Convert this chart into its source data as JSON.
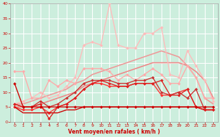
{
  "bg_color": "#cceedd",
  "grid_color": "#ffffff",
  "xlabel": "Vent moyen/en rafales ( km/h )",
  "xlabel_color": "#cc0000",
  "tick_color": "#cc0000",
  "xlim": [
    -0.5,
    23.5
  ],
  "ylim": [
    0,
    40
  ],
  "yticks": [
    0,
    5,
    10,
    15,
    20,
    25,
    30,
    35,
    40
  ],
  "xticks": [
    0,
    1,
    2,
    3,
    4,
    5,
    6,
    7,
    8,
    9,
    10,
    11,
    12,
    13,
    14,
    15,
    16,
    17,
    18,
    19,
    20,
    21,
    22,
    23
  ],
  "lines": [
    {
      "x": [
        0,
        1,
        2,
        3,
        4,
        5,
        6,
        7,
        8,
        9,
        10,
        11,
        12,
        13,
        14,
        15,
        16,
        17,
        18,
        19,
        20,
        21,
        22,
        23
      ],
      "y": [
        5,
        3,
        3,
        3,
        3,
        3,
        4,
        4,
        5,
        5,
        5,
        5,
        5,
        5,
        5,
        5,
        5,
        5,
        5,
        5,
        5,
        5,
        4,
        4
      ],
      "color": "#cc0000",
      "lw": 1.0,
      "marker": null,
      "ms": 0,
      "zorder": 6
    },
    {
      "x": [
        0,
        1,
        2,
        3,
        4,
        5,
        6,
        7,
        8,
        9,
        10,
        11,
        12,
        13,
        14,
        15,
        16,
        17,
        18,
        19,
        20,
        21,
        22,
        23
      ],
      "y": [
        13,
        5,
        5,
        5,
        5,
        5,
        5,
        5,
        5,
        5,
        5,
        5,
        5,
        5,
        5,
        5,
        5,
        5,
        5,
        5,
        5,
        5,
        5,
        5
      ],
      "color": "#cc0000",
      "lw": 1.0,
      "marker": "D",
      "ms": 2.0,
      "zorder": 7
    },
    {
      "x": [
        0,
        1,
        2,
        3,
        4,
        5,
        6,
        7,
        8,
        9,
        10,
        11,
        12,
        13,
        14,
        15,
        16,
        17,
        18,
        19,
        20,
        21,
        22,
        23
      ],
      "y": [
        6,
        5,
        5,
        6,
        1,
        5,
        6,
        8,
        11,
        13,
        14,
        13,
        12,
        12,
        13,
        13,
        13,
        14,
        9,
        9,
        11,
        5,
        4,
        4
      ],
      "color": "#dd2222",
      "lw": 1.0,
      "marker": "D",
      "ms": 2.0,
      "zorder": 6
    },
    {
      "x": [
        0,
        1,
        2,
        3,
        4,
        5,
        6,
        7,
        8,
        9,
        10,
        11,
        12,
        13,
        14,
        15,
        16,
        17,
        18,
        19,
        20,
        21,
        22,
        23
      ],
      "y": [
        5,
        4,
        4,
        5,
        3,
        5,
        6,
        8,
        11,
        13,
        13,
        12,
        12,
        12,
        13,
        13,
        13,
        9,
        9,
        10,
        11,
        5,
        4,
        4
      ],
      "color": "#ff3333",
      "lw": 1.0,
      "marker": "D",
      "ms": 2.0,
      "zorder": 5
    },
    {
      "x": [
        0,
        1,
        2,
        3,
        4,
        5,
        6,
        7,
        8,
        9,
        10,
        11,
        12,
        13,
        14,
        15,
        16,
        17,
        18,
        19,
        20,
        21,
        22,
        23
      ],
      "y": [
        5,
        5,
        5,
        6,
        7,
        8,
        9,
        10,
        12,
        13,
        14,
        15,
        16,
        17,
        18,
        19,
        20,
        20,
        20,
        20,
        19,
        17,
        14,
        8
      ],
      "color": "#ee8888",
      "lw": 1.2,
      "marker": null,
      "ms": 0,
      "zorder": 2
    },
    {
      "x": [
        0,
        1,
        2,
        3,
        4,
        5,
        6,
        7,
        8,
        9,
        10,
        11,
        12,
        13,
        14,
        15,
        16,
        17,
        18,
        19,
        20,
        21,
        22,
        23
      ],
      "y": [
        6,
        6,
        7,
        8,
        9,
        10,
        11,
        13,
        14,
        16,
        17,
        18,
        19,
        20,
        21,
        22,
        23,
        24,
        23,
        22,
        19,
        15,
        8,
        6
      ],
      "color": "#ee9999",
      "lw": 1.2,
      "marker": null,
      "ms": 0,
      "zorder": 2
    },
    {
      "x": [
        0,
        1,
        2,
        3,
        4,
        5,
        6,
        7,
        8,
        9,
        10,
        11,
        12,
        13,
        14,
        15,
        16,
        17,
        18,
        19,
        20,
        21,
        22,
        23
      ],
      "y": [
        17,
        17,
        8,
        8,
        14,
        12,
        14,
        13,
        18,
        18,
        18,
        17,
        14,
        16,
        14,
        16,
        18,
        16,
        13,
        13,
        19,
        15,
        8,
        8
      ],
      "color": "#ffaaaa",
      "lw": 1.0,
      "marker": "D",
      "ms": 2.0,
      "zorder": 4
    },
    {
      "x": [
        0,
        1,
        2,
        3,
        4,
        5,
        6,
        7,
        8,
        9,
        10,
        11,
        12,
        13,
        14,
        15,
        16,
        17,
        18,
        19,
        20,
        21,
        22,
        23
      ],
      "y": [
        6,
        7,
        8,
        10,
        8,
        9,
        12,
        15,
        26,
        27,
        26,
        40,
        26,
        25,
        25,
        30,
        30,
        32,
        16,
        15,
        24,
        19,
        14,
        7
      ],
      "color": "#ffbbbb",
      "lw": 1.0,
      "marker": "D",
      "ms": 2.0,
      "zorder": 3
    },
    {
      "x": [
        0,
        1,
        2,
        3,
        4,
        5,
        6,
        7,
        8,
        9,
        10,
        11,
        12,
        13,
        14,
        15,
        16,
        17,
        18,
        19,
        20,
        21,
        22,
        23
      ],
      "y": [
        6,
        5,
        5,
        7,
        5,
        6,
        8,
        10,
        13,
        14,
        14,
        14,
        13,
        13,
        14,
        14,
        15,
        10,
        9,
        10,
        8,
        11,
        4,
        4
      ],
      "color": "#cc3333",
      "lw": 1.0,
      "marker": "D",
      "ms": 2.0,
      "zorder": 5
    }
  ]
}
